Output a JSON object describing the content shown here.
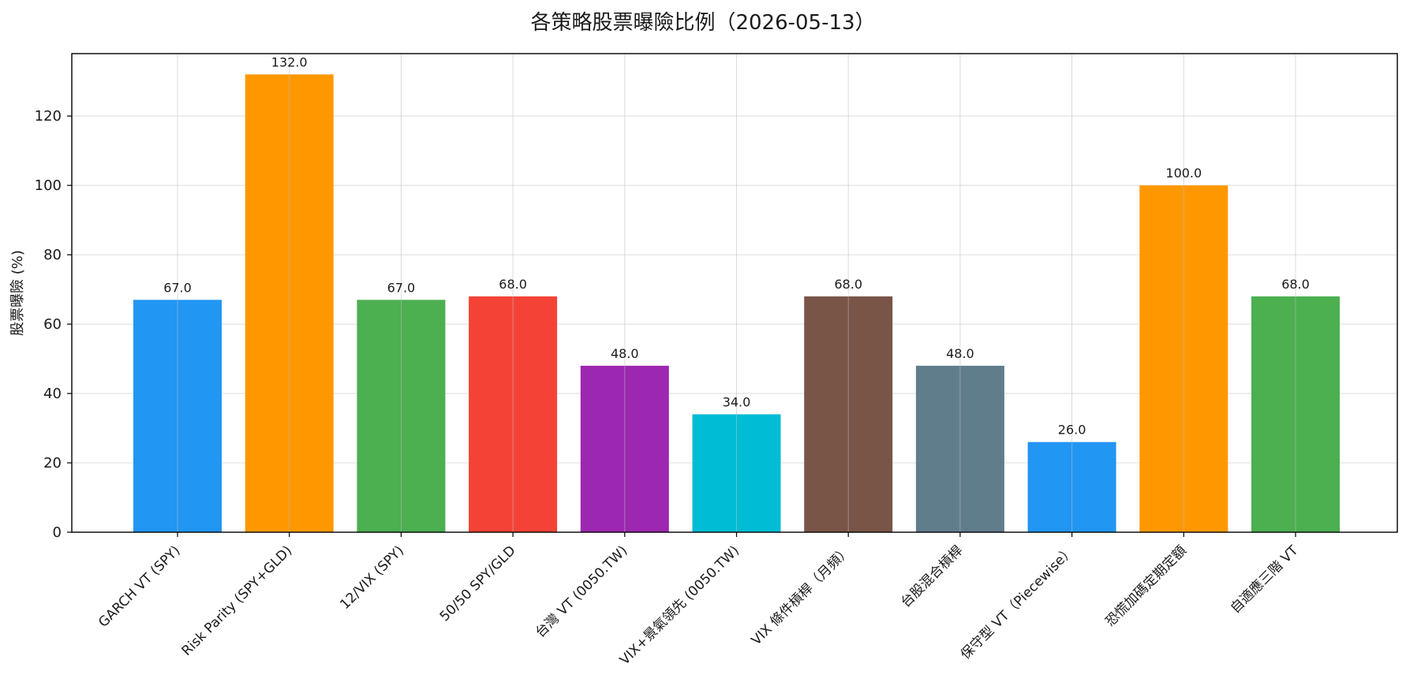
{
  "chart_data": {
    "type": "bar",
    "title": "各策略股票曝險比例（2026-05-13）",
    "xlabel": "",
    "ylabel": "股票曝險 (%)",
    "ylim": [
      0,
      138
    ],
    "yticks": [
      0,
      20,
      40,
      60,
      80,
      100,
      120
    ],
    "grid": true,
    "categories": [
      "GARCH VT (SPY)",
      "Risk Parity (SPY+GLD)",
      "12/VIX (SPY)",
      "50/50 SPY/GLD",
      "台灣 VT (0050.TW)",
      "VIX+景氣領先 (0050.TW)",
      "VIX 條件槓桿（月頻）",
      "台股混合槓桿",
      "保守型 VT（Piecewise）",
      "恐慌加碼定期定額",
      "自適應三階 VT"
    ],
    "values": [
      67.0,
      132.0,
      67.0,
      68.0,
      48.0,
      34.0,
      68.0,
      48.0,
      26.0,
      100.0,
      68.0
    ],
    "value_labels": [
      "67.0",
      "132.0",
      "67.0",
      "68.0",
      "48.0",
      "34.0",
      "68.0",
      "48.0",
      "26.0",
      "100.0",
      "68.0"
    ],
    "colors": [
      "#2196F3",
      "#FF9800",
      "#4CAF50",
      "#F44336",
      "#9C27B0",
      "#00BCD4",
      "#795548",
      "#607D8B",
      "#2196F3",
      "#FF9800",
      "#4CAF50"
    ]
  }
}
